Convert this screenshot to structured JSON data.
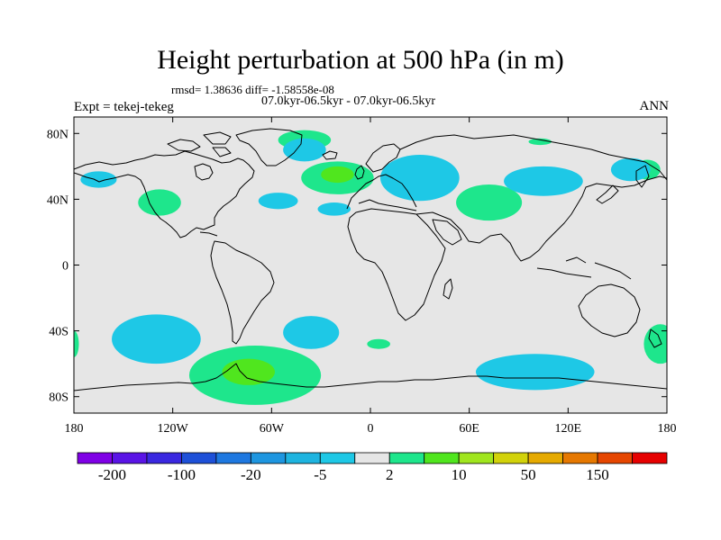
{
  "header": {
    "title": "Height perturbation at 500 hPa (in m)",
    "stats": "rmsd= 1.38636 diff= -1.58558e-08",
    "period": "07.0kyr-06.5kyr - 07.0kyr-06.5kyr",
    "experiment": "Expt = tekej-tekeg",
    "season": "ANN"
  },
  "map": {
    "projection": "cylindrical equidistant",
    "lon_range": [
      -180,
      180
    ],
    "lat_range": [
      -90,
      90
    ],
    "background_color": "#e6e6e6",
    "x_ticks": [
      {
        "value": -180,
        "label": "180"
      },
      {
        "value": -120,
        "label": "120W"
      },
      {
        "value": -60,
        "label": "60W"
      },
      {
        "value": 0,
        "label": "0"
      },
      {
        "value": 60,
        "label": "60E"
      },
      {
        "value": 120,
        "label": "120E"
      },
      {
        "value": 180,
        "label": "180"
      }
    ],
    "y_ticks": [
      {
        "value": 80,
        "label": "80N"
      },
      {
        "value": 40,
        "label": "40N"
      },
      {
        "value": 0,
        "label": "0"
      },
      {
        "value": -40,
        "label": "40S"
      },
      {
        "value": -80,
        "label": "80S"
      }
    ],
    "anomaly_regions": [
      {
        "sign": "positive",
        "level": 2,
        "lon": -40,
        "lat": 76,
        "rlon": 16,
        "rlat": 6
      },
      {
        "sign": "positive",
        "level": 2,
        "lon": -20,
        "lat": 53,
        "rlon": 22,
        "rlat": 10
      },
      {
        "sign": "positive",
        "level": 10,
        "lon": -20,
        "lat": 55,
        "rlon": 10,
        "rlat": 5
      },
      {
        "sign": "positive",
        "level": 2,
        "lon": 72,
        "lat": 38,
        "rlon": 20,
        "rlat": 11
      },
      {
        "sign": "positive",
        "level": 2,
        "lon": -128,
        "lat": 38,
        "rlon": 13,
        "rlat": 8
      },
      {
        "sign": "positive",
        "level": 2,
        "lon": 103,
        "lat": 75,
        "rlon": 7,
        "rlat": 2
      },
      {
        "sign": "positive",
        "level": 2,
        "lon": 168,
        "lat": 58,
        "rlon": 8,
        "rlat": 6
      },
      {
        "sign": "positive",
        "level": 2,
        "lon": 176,
        "lat": -48,
        "rlon": 10,
        "rlat": 12
      },
      {
        "sign": "positive",
        "level": 2,
        "lon": -180,
        "lat": -48,
        "rlon": 3,
        "rlat": 8
      },
      {
        "sign": "positive",
        "level": 2,
        "lon": 5,
        "lat": -48,
        "rlon": 7,
        "rlat": 3
      },
      {
        "sign": "positive",
        "level": 2,
        "lon": -70,
        "lat": -67,
        "rlon": 40,
        "rlat": 18
      },
      {
        "sign": "positive",
        "level": 10,
        "lon": -74,
        "lat": -65,
        "rlon": 16,
        "rlat": 8
      },
      {
        "sign": "negative",
        "level": -5,
        "lon": -40,
        "lat": 70,
        "rlon": 13,
        "rlat": 7
      },
      {
        "sign": "negative",
        "level": -5,
        "lon": 30,
        "lat": 53,
        "rlon": 24,
        "rlat": 14
      },
      {
        "sign": "negative",
        "level": -5,
        "lon": 105,
        "lat": 51,
        "rlon": 24,
        "rlat": 9
      },
      {
        "sign": "negative",
        "level": -5,
        "lon": 158,
        "lat": 58,
        "rlon": 12,
        "rlat": 7
      },
      {
        "sign": "negative",
        "level": -5,
        "lon": -165,
        "lat": 52,
        "rlon": 11,
        "rlat": 5
      },
      {
        "sign": "negative",
        "level": -5,
        "lon": -56,
        "lat": 39,
        "rlon": 12,
        "rlat": 5
      },
      {
        "sign": "negative",
        "level": -5,
        "lon": -22,
        "lat": 34,
        "rlon": 10,
        "rlat": 4
      },
      {
        "sign": "negative",
        "level": -5,
        "lon": -36,
        "lat": -41,
        "rlon": 17,
        "rlat": 10
      },
      {
        "sign": "negative",
        "level": -5,
        "lon": -130,
        "lat": -45,
        "rlon": 27,
        "rlat": 15
      },
      {
        "sign": "negative",
        "level": -5,
        "lon": 100,
        "lat": -65,
        "rlon": 36,
        "rlat": 11
      }
    ]
  },
  "colorbar": {
    "colors": [
      "#7f00e6",
      "#5a14e6",
      "#3a28e0",
      "#1e50d8",
      "#1e78e0",
      "#1e96e0",
      "#1eb4e0",
      "#1ec8e6",
      "#e6e6e6",
      "#1ee68c",
      "#50e61e",
      "#a0e61e",
      "#d2d20a",
      "#e6aa00",
      "#e67800",
      "#e64600",
      "#e60000"
    ],
    "labels": [
      "-200",
      "-100",
      "-20",
      "-5",
      "2",
      "10",
      "50",
      "150"
    ]
  },
  "legend_colors": {
    "positive_level_2": "#1ee68c",
    "positive_level_10": "#50e61e",
    "negative_level_5": "#1ec8e6"
  }
}
